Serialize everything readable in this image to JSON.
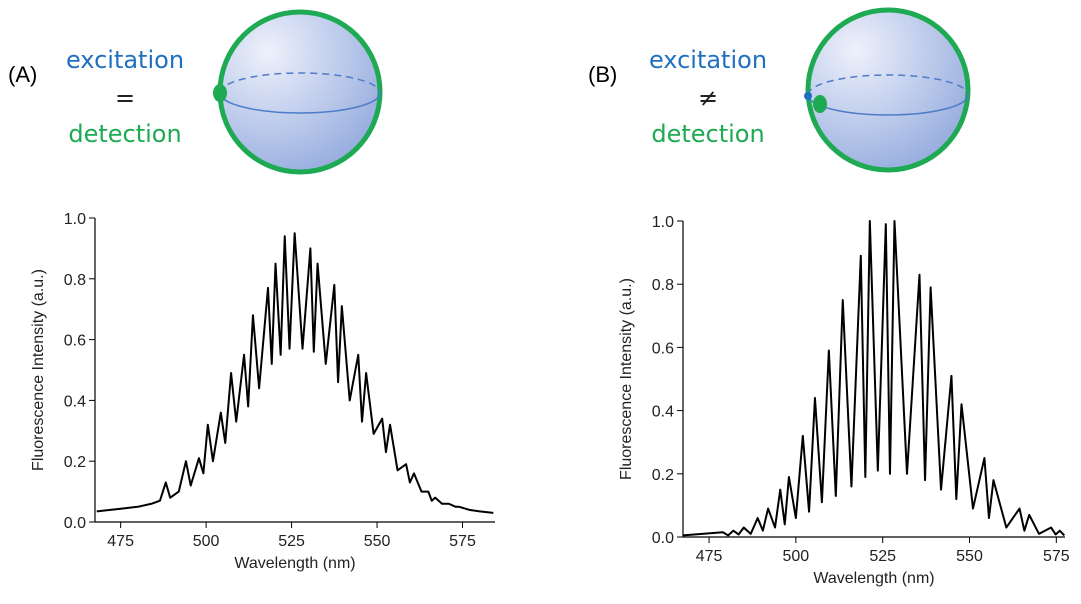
{
  "chart_data": [
    {
      "type": "line",
      "panel_label": "(A)",
      "annotations": [
        "excitation",
        "=",
        "detection"
      ],
      "x_label": "Wavelength (nm)",
      "y_label": "Fluorescence Intensity (a.u.)",
      "color": "#000000",
      "xlim": [
        467.5,
        584.5
      ],
      "xticks": [
        475,
        500,
        525,
        550,
        575
      ],
      "ylim": [
        0,
        1
      ],
      "yticks": [
        {
          "value": 0,
          "label": "0.0"
        },
        0.2,
        0.4,
        0.6,
        0.8,
        {
          "value": 1,
          "label": "1.0"
        }
      ],
      "x": [
        468,
        472,
        476,
        480,
        484,
        486.5,
        488.2,
        489.5,
        492,
        494.1,
        495.5,
        497.9,
        499.2,
        500.5,
        502,
        504.3,
        505.6,
        507.3,
        508.8,
        511.1,
        512.3,
        513.7,
        515.5,
        518.1,
        519.2,
        520.3,
        521.8,
        523.0,
        524.4,
        525.9,
        528.2,
        530.5,
        531.5,
        532.6,
        535,
        537.5,
        538.6,
        539.7,
        542,
        544.5,
        545.6,
        546.8,
        549,
        551.5,
        552.6,
        553.8,
        556,
        558.5,
        559.6,
        560.8,
        563,
        565,
        566,
        567,
        569,
        571,
        573,
        574,
        577,
        580,
        584
      ],
      "values": [
        0.035,
        0.04,
        0.045,
        0.05,
        0.06,
        0.07,
        0.13,
        0.08,
        0.1,
        0.2,
        0.12,
        0.21,
        0.16,
        0.32,
        0.2,
        0.36,
        0.26,
        0.49,
        0.33,
        0.55,
        0.38,
        0.68,
        0.44,
        0.77,
        0.52,
        0.85,
        0.55,
        0.94,
        0.57,
        0.95,
        0.57,
        0.9,
        0.56,
        0.85,
        0.52,
        0.78,
        0.46,
        0.71,
        0.4,
        0.55,
        0.33,
        0.49,
        0.29,
        0.34,
        0.23,
        0.32,
        0.17,
        0.19,
        0.13,
        0.16,
        0.1,
        0.1,
        0.07,
        0.08,
        0.06,
        0.06,
        0.05,
        0.05,
        0.04,
        0.035,
        0.03
      ]
    },
    {
      "type": "line",
      "panel_label": "(B)",
      "annotations": [
        "excitation",
        "≠",
        "detection"
      ],
      "x_label": "Wavelength (nm)",
      "y_label": "Fluorescence Intensity (a.u.)",
      "color": "#000000",
      "xlim": [
        467.5,
        577.5
      ],
      "xticks": [
        475,
        500,
        525,
        550,
        575
      ],
      "ylim": [
        0,
        1
      ],
      "yticks": [
        {
          "value": 0,
          "label": "0.0"
        },
        0.2,
        0.4,
        0.6,
        0.8,
        {
          "value": 1,
          "label": "1.0"
        }
      ],
      "x": [
        467.5,
        479,
        480.5,
        482,
        483.5,
        485,
        487,
        489,
        490.5,
        492,
        494,
        495.5,
        496.8,
        498,
        500,
        502,
        503.8,
        505.5,
        507.5,
        509.5,
        511.5,
        513.5,
        516,
        518.7,
        520,
        521.3,
        523.6,
        525.9,
        527.1,
        528.4,
        532,
        535.6,
        537.2,
        538.8,
        541.8,
        544.8,
        546.2,
        547.7,
        551,
        554.3,
        555.6,
        556.9,
        560.6,
        564.4,
        565.8,
        567.2,
        570,
        573.5,
        574.8,
        576,
        577.3
      ],
      "values": [
        0.005,
        0.015,
        0.005,
        0.02,
        0.008,
        0.03,
        0.01,
        0.06,
        0.02,
        0.09,
        0.03,
        0.15,
        0.04,
        0.19,
        0.06,
        0.32,
        0.08,
        0.44,
        0.11,
        0.59,
        0.13,
        0.75,
        0.16,
        0.89,
        0.19,
        1.0,
        0.21,
        0.99,
        0.2,
        1.0,
        0.2,
        0.83,
        0.18,
        0.79,
        0.15,
        0.51,
        0.12,
        0.42,
        0.09,
        0.25,
        0.06,
        0.18,
        0.03,
        0.09,
        0.02,
        0.07,
        0.01,
        0.03,
        0.008,
        0.02,
        0.005
      ]
    }
  ]
}
